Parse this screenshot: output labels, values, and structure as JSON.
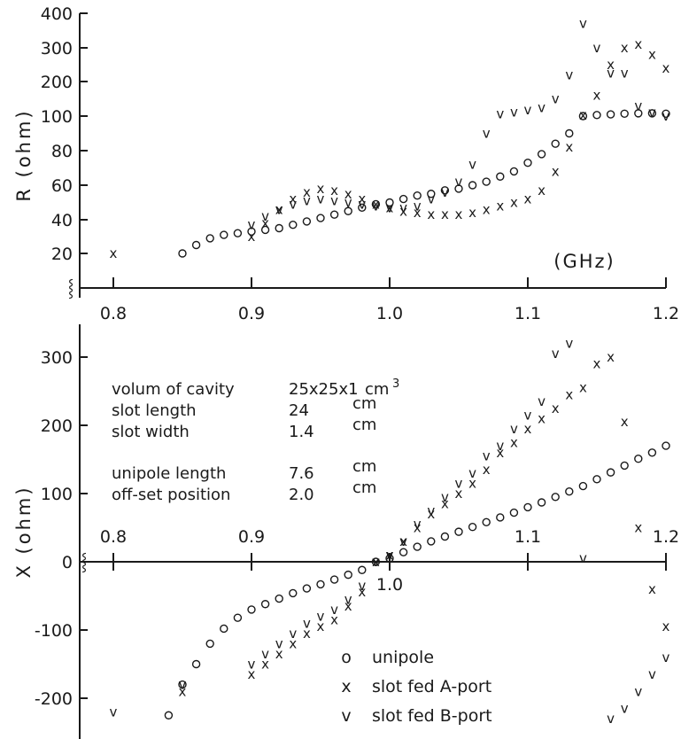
{
  "chart_data": [
    {
      "type": "scatter",
      "title": "",
      "xlabel": "(GHz)",
      "ylabel": "R (ohm)",
      "y_scale": "nonuniform (20-100 linear, 100-400 compressed)",
      "y_tick_labels": [
        "20",
        "40",
        "60",
        "80",
        "100",
        "200",
        "300",
        "400"
      ],
      "x_ticks": [
        "0.8",
        "0.9",
        "1.0",
        "1.1",
        "1.2"
      ],
      "xlim": [
        0.8,
        1.2
      ],
      "grid": false,
      "series": [
        {
          "name": "unipole",
          "marker": "o",
          "points": [
            [
              0.85,
              20
            ],
            [
              0.86,
              25
            ],
            [
              0.87,
              29
            ],
            [
              0.88,
              31
            ],
            [
              0.89,
              32
            ],
            [
              0.9,
              33
            ],
            [
              0.91,
              34
            ],
            [
              0.92,
              35
            ],
            [
              0.93,
              37
            ],
            [
              0.94,
              39
            ],
            [
              0.95,
              41
            ],
            [
              0.96,
              43
            ],
            [
              0.97,
              45
            ],
            [
              0.98,
              47
            ],
            [
              0.99,
              49
            ],
            [
              1.0,
              50
            ],
            [
              1.01,
              52
            ],
            [
              1.02,
              54
            ],
            [
              1.03,
              55
            ],
            [
              1.04,
              57
            ],
            [
              1.05,
              58
            ],
            [
              1.06,
              60
            ],
            [
              1.07,
              62
            ],
            [
              1.08,
              65
            ],
            [
              1.09,
              68
            ],
            [
              1.1,
              73
            ],
            [
              1.11,
              78
            ],
            [
              1.12,
              84
            ],
            [
              1.13,
              90
            ],
            [
              1.14,
              100
            ],
            [
              1.15,
              103
            ],
            [
              1.16,
              105
            ],
            [
              1.17,
              107
            ],
            [
              1.18,
              108
            ],
            [
              1.19,
              108
            ],
            [
              1.2,
              107
            ]
          ]
        },
        {
          "name": "slot fed A-port",
          "marker": "x",
          "points": [
            [
              0.8,
              20
            ],
            [
              0.9,
              30
            ],
            [
              0.91,
              38
            ],
            [
              0.92,
              46
            ],
            [
              0.93,
              52
            ],
            [
              0.94,
              56
            ],
            [
              0.95,
              58
            ],
            [
              0.96,
              57
            ],
            [
              0.97,
              55
            ],
            [
              0.98,
              52
            ],
            [
              0.99,
              49
            ],
            [
              1.0,
              47
            ],
            [
              1.01,
              45
            ],
            [
              1.02,
              44
            ],
            [
              1.03,
              43
            ],
            [
              1.04,
              43
            ],
            [
              1.05,
              43
            ],
            [
              1.06,
              44
            ],
            [
              1.07,
              46
            ],
            [
              1.08,
              48
            ],
            [
              1.09,
              50
            ],
            [
              1.1,
              52
            ],
            [
              1.11,
              57
            ],
            [
              1.12,
              68
            ],
            [
              1.13,
              82
            ],
            [
              1.14,
              102
            ],
            [
              1.15,
              160
            ],
            [
              1.16,
              250
            ],
            [
              1.17,
              300
            ],
            [
              1.18,
              310
            ],
            [
              1.19,
              280
            ],
            [
              1.2,
              240
            ]
          ]
        },
        {
          "name": "slot fed B-port",
          "marker": "v",
          "points": [
            [
              0.9,
              37
            ],
            [
              0.91,
              42
            ],
            [
              0.92,
              46
            ],
            [
              0.93,
              49
            ],
            [
              0.94,
              51
            ],
            [
              0.95,
              52
            ],
            [
              0.96,
              51
            ],
            [
              0.97,
              50
            ],
            [
              0.98,
              49
            ],
            [
              0.99,
              48
            ],
            [
              1.0,
              47
            ],
            [
              1.01,
              47
            ],
            [
              1.02,
              48
            ],
            [
              1.03,
              52
            ],
            [
              1.04,
              56
            ],
            [
              1.05,
              62
            ],
            [
              1.06,
              72
            ],
            [
              1.07,
              90
            ],
            [
              1.08,
              106
            ],
            [
              1.09,
              112
            ],
            [
              1.1,
              118
            ],
            [
              1.11,
              125
            ],
            [
              1.12,
              150
            ],
            [
              1.13,
              220
            ],
            [
              1.14,
              370
            ],
            [
              1.15,
              300
            ],
            [
              1.16,
              225
            ],
            [
              1.17,
              225
            ],
            [
              1.18,
              130
            ],
            [
              1.19,
              110
            ],
            [
              1.2,
              100
            ]
          ]
        }
      ]
    },
    {
      "type": "scatter",
      "title": "",
      "xlabel": "",
      "ylabel": "X (ohm)",
      "x_ticks": [
        "0.8",
        "0.9",
        "1.0",
        "1.1",
        "1.2"
      ],
      "y_ticks": [
        "-200",
        "-100",
        "0",
        "100",
        "200",
        "300"
      ],
      "xlim": [
        0.8,
        1.2
      ],
      "ylim": [
        -230,
        330
      ],
      "grid": false,
      "series": [
        {
          "name": "unipole",
          "marker": "o",
          "points": [
            [
              0.84,
              -225
            ],
            [
              0.85,
              -180
            ],
            [
              0.86,
              -150
            ],
            [
              0.87,
              -120
            ],
            [
              0.88,
              -98
            ],
            [
              0.89,
              -82
            ],
            [
              0.9,
              -70
            ],
            [
              0.91,
              -62
            ],
            [
              0.92,
              -54
            ],
            [
              0.93,
              -46
            ],
            [
              0.94,
              -39
            ],
            [
              0.95,
              -33
            ],
            [
              0.96,
              -26
            ],
            [
              0.97,
              -19
            ],
            [
              0.98,
              -12
            ],
            [
              0.99,
              0
            ],
            [
              1.0,
              5
            ],
            [
              1.01,
              14
            ],
            [
              1.02,
              22
            ],
            [
              1.03,
              30
            ],
            [
              1.04,
              37
            ],
            [
              1.05,
              44
            ],
            [
              1.06,
              51
            ],
            [
              1.07,
              58
            ],
            [
              1.08,
              65
            ],
            [
              1.09,
              72
            ],
            [
              1.1,
              80
            ],
            [
              1.11,
              87
            ],
            [
              1.12,
              95
            ],
            [
              1.13,
              103
            ],
            [
              1.14,
              111
            ],
            [
              1.15,
              121
            ],
            [
              1.16,
              131
            ],
            [
              1.17,
              141
            ],
            [
              1.18,
              151
            ],
            [
              1.19,
              160
            ],
            [
              1.2,
              170
            ]
          ]
        },
        {
          "name": "slot fed A-port",
          "marker": "x",
          "points": [
            [
              0.85,
              -190
            ],
            [
              0.9,
              -165
            ],
            [
              0.91,
              -150
            ],
            [
              0.92,
              -135
            ],
            [
              0.93,
              -120
            ],
            [
              0.94,
              -105
            ],
            [
              0.95,
              -95
            ],
            [
              0.96,
              -85
            ],
            [
              0.97,
              -65
            ],
            [
              0.98,
              -44
            ],
            [
              0.99,
              0
            ],
            [
              1.0,
              10
            ],
            [
              1.01,
              30
            ],
            [
              1.02,
              50
            ],
            [
              1.03,
              70
            ],
            [
              1.04,
              85
            ],
            [
              1.05,
              100
            ],
            [
              1.06,
              115
            ],
            [
              1.07,
              135
            ],
            [
              1.08,
              160
            ],
            [
              1.09,
              175
            ],
            [
              1.1,
              195
            ],
            [
              1.11,
              210
            ],
            [
              1.12,
              225
            ],
            [
              1.13,
              245
            ],
            [
              1.14,
              255
            ],
            [
              1.15,
              290
            ],
            [
              1.16,
              300
            ],
            [
              1.17,
              205
            ],
            [
              1.18,
              50
            ],
            [
              1.19,
              -40
            ],
            [
              1.2,
              -95
            ]
          ]
        },
        {
          "name": "slot fed B-port",
          "marker": "v",
          "points": [
            [
              0.8,
              -220
            ],
            [
              0.85,
              -180
            ],
            [
              0.9,
              -150
            ],
            [
              0.91,
              -135
            ],
            [
              0.92,
              -120
            ],
            [
              0.93,
              -105
            ],
            [
              0.94,
              -90
            ],
            [
              0.95,
              -80
            ],
            [
              0.96,
              -70
            ],
            [
              0.97,
              -55
            ],
            [
              0.98,
              -35
            ],
            [
              0.99,
              0
            ],
            [
              1.0,
              10
            ],
            [
              1.01,
              30
            ],
            [
              1.02,
              55
            ],
            [
              1.03,
              75
            ],
            [
              1.04,
              95
            ],
            [
              1.05,
              115
            ],
            [
              1.06,
              130
            ],
            [
              1.07,
              155
            ],
            [
              1.08,
              170
            ],
            [
              1.09,
              195
            ],
            [
              1.1,
              215
            ],
            [
              1.11,
              235
            ],
            [
              1.12,
              305
            ],
            [
              1.13,
              320
            ],
            [
              1.14,
              5
            ],
            [
              1.16,
              -230
            ],
            [
              1.17,
              -215
            ],
            [
              1.18,
              -190
            ],
            [
              1.19,
              -165
            ],
            [
              1.2,
              -140
            ]
          ]
        }
      ]
    }
  ],
  "info": [
    {
      "label": "volum of cavity",
      "value": "25x25x1",
      "unit": "cm",
      "unit_sup": "3"
    },
    {
      "label": "slot length",
      "value": "24",
      "unit": "cm",
      "unit_sup": ""
    },
    {
      "label": "slot width",
      "value": "1.4",
      "unit": "cm",
      "unit_sup": ""
    },
    {
      "label": "unipole length",
      "value": "7.6",
      "unit": "cm",
      "unit_sup": ""
    },
    {
      "label": "off-set position",
      "value": "2.0",
      "unit": "cm",
      "unit_sup": ""
    }
  ],
  "legend": [
    {
      "marker": "o",
      "label": "unipole"
    },
    {
      "marker": "x",
      "label": "slot fed A-port"
    },
    {
      "marker": "v",
      "label": "slot fed B-port"
    }
  ],
  "zero_tick_label": "1.0",
  "axis_break_symbol": "⸾"
}
